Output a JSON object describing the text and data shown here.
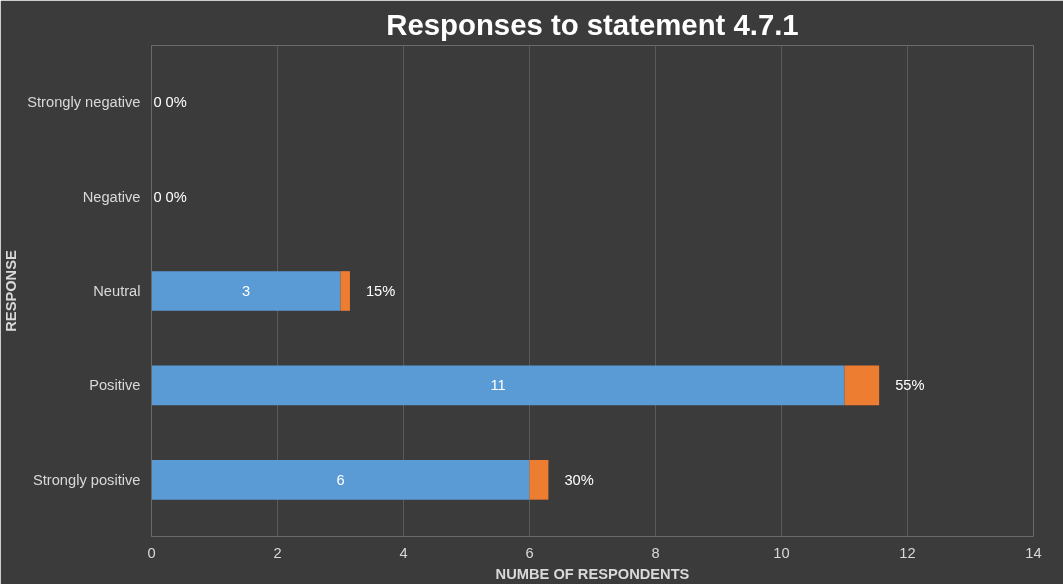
{
  "chart_data": {
    "type": "bar",
    "orientation": "horizontal",
    "stacked": true,
    "title": "Responses to statement 4.7.1",
    "xlabel": "NUMBE OF RESPONDENTS",
    "ylabel": "RESPONSE",
    "categories": [
      "Strongly negative",
      "Negative",
      "Neutral",
      "Positive",
      "Strongly positive"
    ],
    "series": [
      {
        "color": "#5b9bd5",
        "values": [
          0,
          0,
          3,
          11,
          6
        ],
        "value_labels": [
          "0",
          "0",
          "3",
          "11",
          "6"
        ]
      },
      {
        "color": "#ed7d31",
        "values": [
          0,
          0,
          0.15,
          0.55,
          0.3
        ],
        "value_labels": [
          "0%",
          "0%",
          "15%",
          "55%",
          "30%"
        ]
      }
    ],
    "xlim": [
      0,
      14
    ],
    "xticks": [
      0,
      2,
      4,
      6,
      8,
      10,
      12,
      14
    ],
    "grid": "x"
  }
}
